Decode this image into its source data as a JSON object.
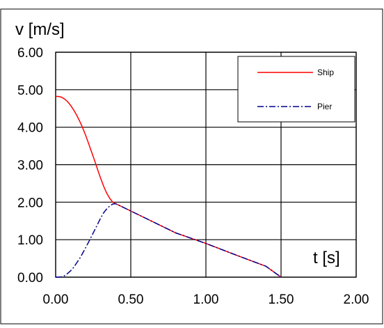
{
  "chart_data": {
    "type": "line",
    "title": "",
    "ylabel": "v [m/s]",
    "xlabel": "t [s]",
    "xlim": [
      0,
      2
    ],
    "ylim": [
      0,
      6
    ],
    "x_ticks": [
      0,
      0.5,
      1,
      1.5,
      2
    ],
    "x_tick_labels": [
      "0.00",
      "0.50",
      "1.00",
      "1.50",
      "2.00"
    ],
    "y_ticks": [
      0,
      1,
      2,
      3,
      4,
      5,
      6
    ],
    "y_tick_labels": [
      "0.00",
      "1.00",
      "2.00",
      "3.00",
      "4.00",
      "5.00",
      "6.00"
    ],
    "grid": true,
    "legend_position": "top-right",
    "series": [
      {
        "name": "Ship",
        "color": "#ff0000",
        "line_style": "solid",
        "x": [
          0,
          0.02,
          0.04,
          0.06,
          0.08,
          0.1,
          0.12,
          0.14,
          0.16,
          0.18,
          0.2,
          0.22,
          0.24,
          0.26,
          0.28,
          0.3,
          0.32,
          0.34,
          0.36,
          0.38,
          0.4,
          0.6,
          0.8,
          1.0,
          1.2,
          1.4,
          1.5
        ],
        "y": [
          4.82,
          4.82,
          4.8,
          4.75,
          4.68,
          4.58,
          4.46,
          4.32,
          4.16,
          3.98,
          3.78,
          3.56,
          3.33,
          3.1,
          2.86,
          2.63,
          2.42,
          2.24,
          2.1,
          2.0,
          1.96,
          1.57,
          1.18,
          0.9,
          0.59,
          0.29,
          0.0
        ]
      },
      {
        "name": "Pier",
        "color": "#00008b",
        "line_style": "dash-dot",
        "x": [
          0,
          0.02,
          0.04,
          0.06,
          0.08,
          0.1,
          0.12,
          0.14,
          0.16,
          0.18,
          0.2,
          0.22,
          0.24,
          0.26,
          0.28,
          0.3,
          0.32,
          0.34,
          0.36,
          0.38,
          0.4,
          0.6,
          0.8,
          1.0,
          1.2,
          1.4,
          1.5
        ],
        "y": [
          0.0,
          0.0,
          0.01,
          0.04,
          0.1,
          0.17,
          0.26,
          0.38,
          0.5,
          0.64,
          0.79,
          0.94,
          1.1,
          1.26,
          1.42,
          1.58,
          1.72,
          1.82,
          1.9,
          1.95,
          1.96,
          1.57,
          1.18,
          0.9,
          0.59,
          0.29,
          0.0
        ]
      }
    ]
  }
}
